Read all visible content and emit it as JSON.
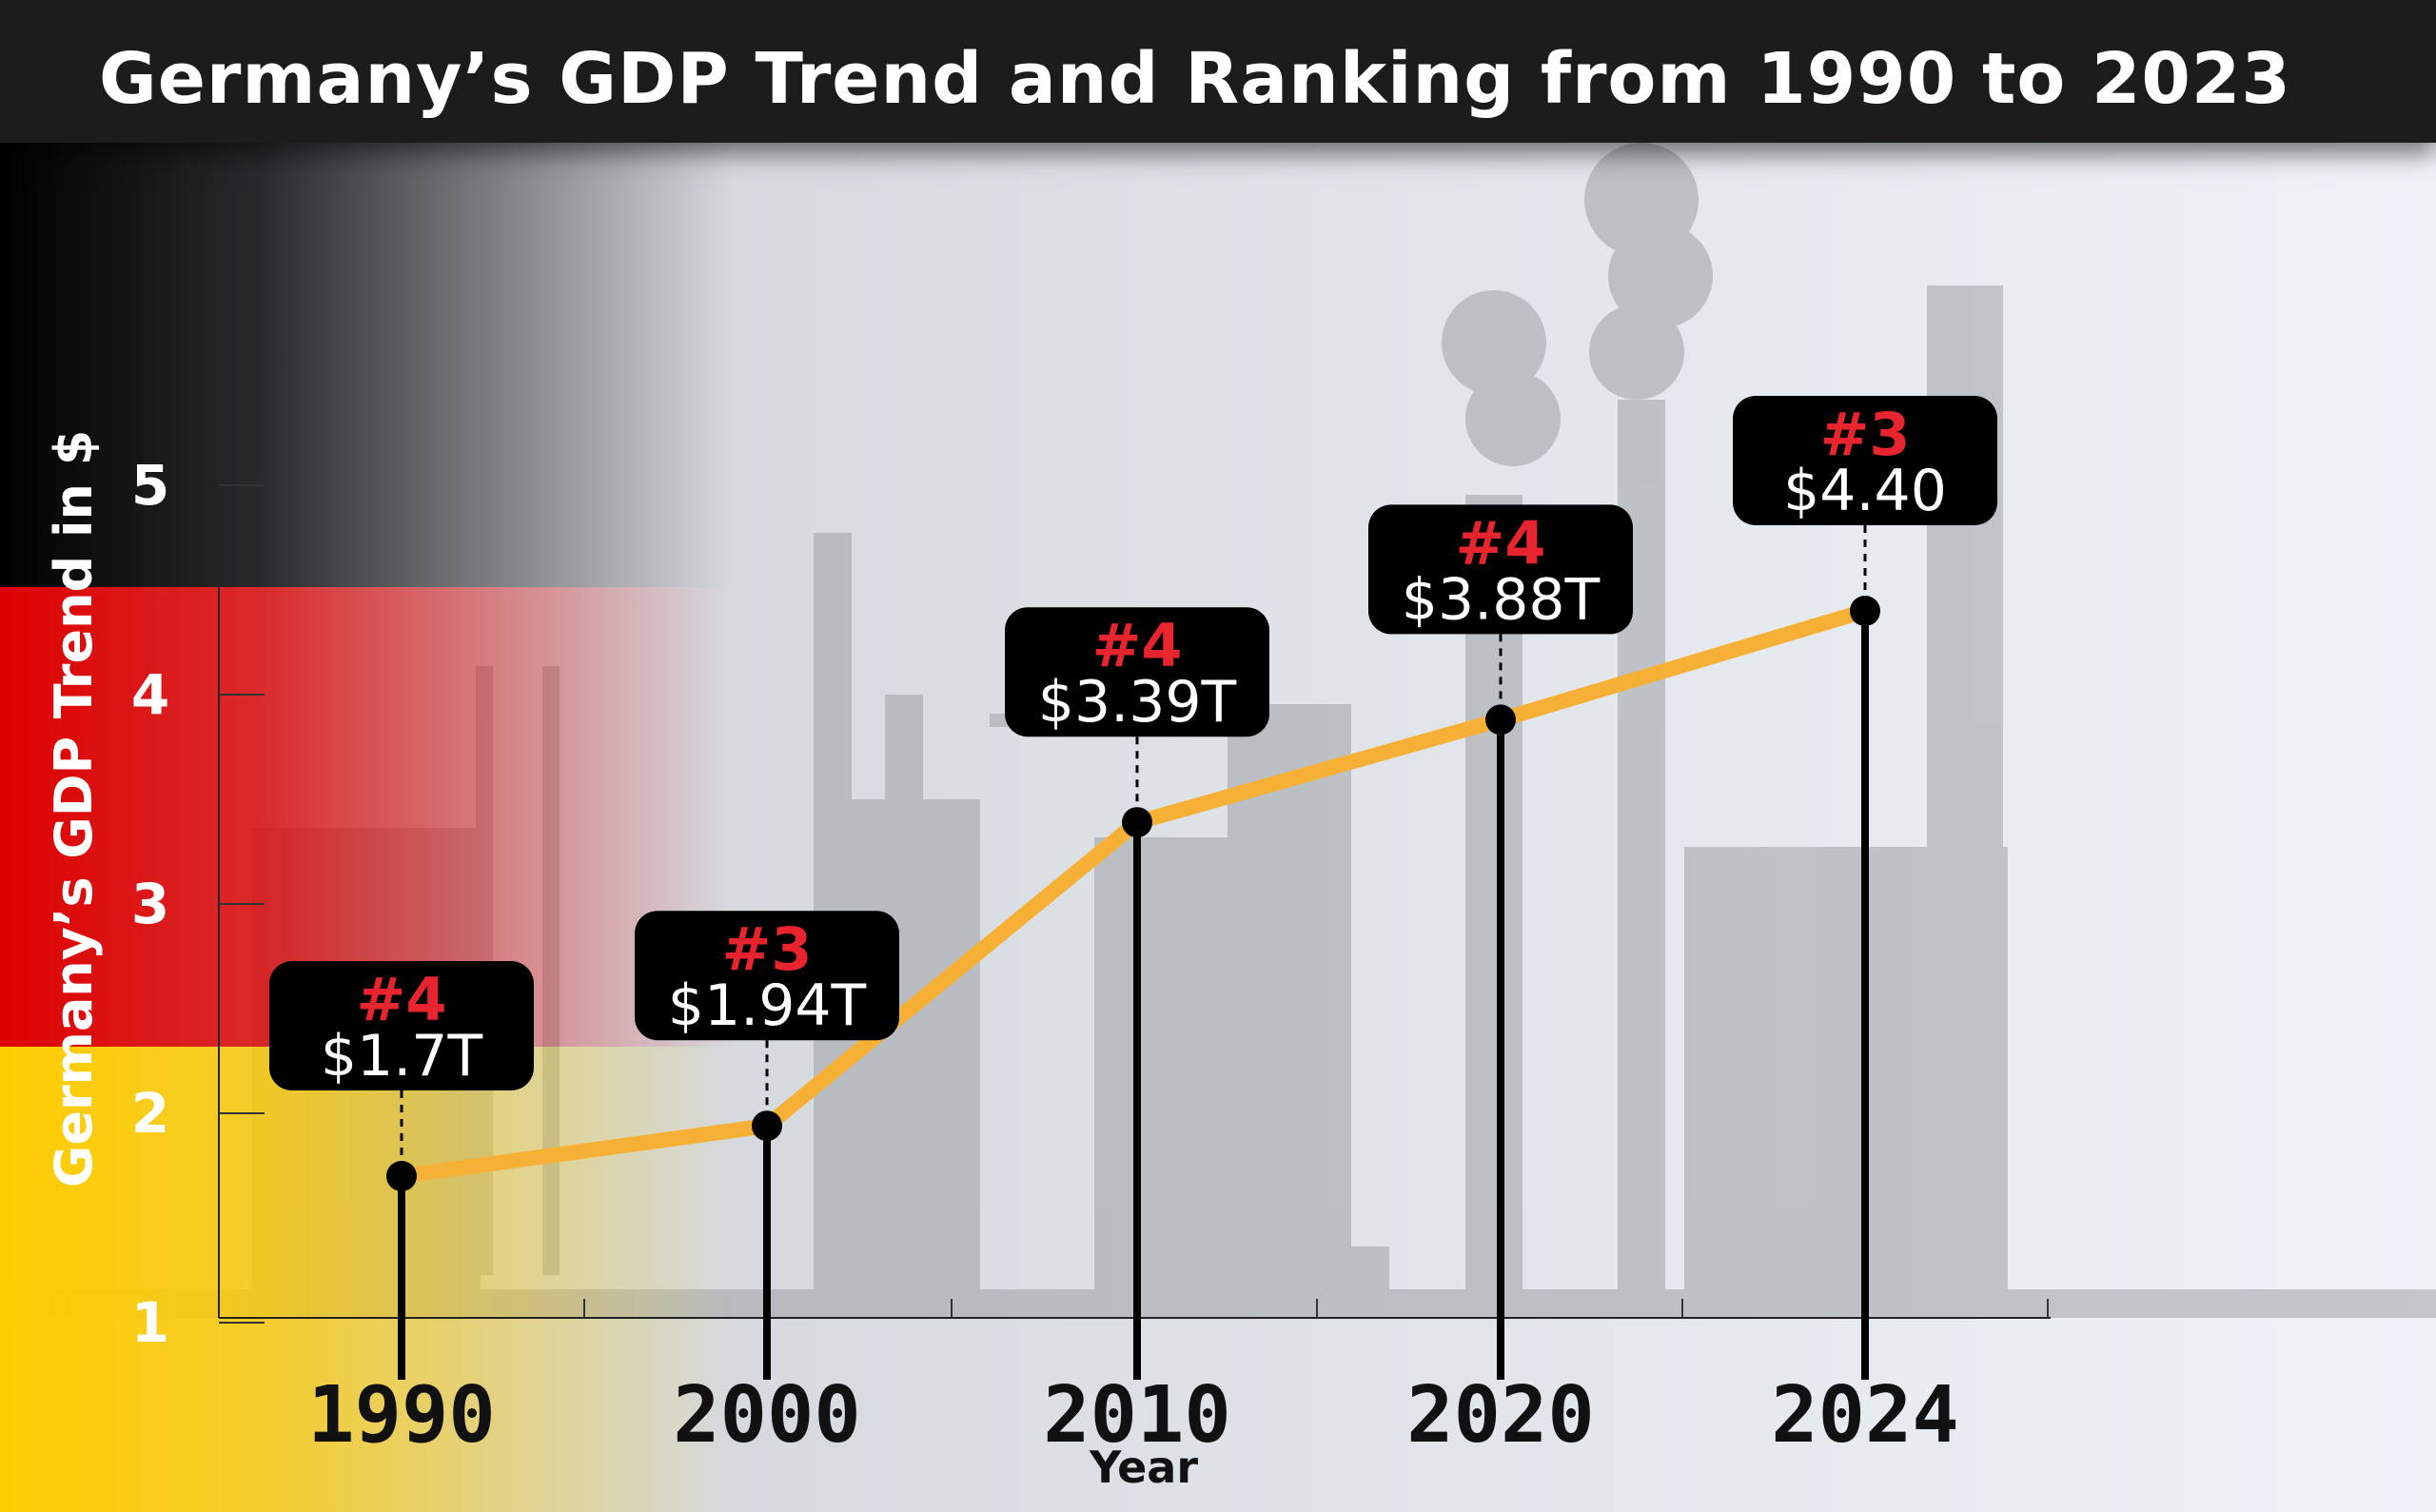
{
  "chart_data": {
    "type": "line",
    "title": "Germany’s GDP Trend and Ranking from 1990 to 2023",
    "xlabel": "Year",
    "ylabel": "Germany’s GDP Trend in $",
    "ylim": [
      1,
      5
    ],
    "yticks": [
      "1",
      "2",
      "3",
      "4",
      "5"
    ],
    "categories": [
      "1990",
      "2000",
      "2010",
      "2020",
      "2024"
    ],
    "series": [
      {
        "values": [
          1.7,
          1.94,
          3.39,
          3.88,
          4.4
        ]
      }
    ],
    "annotations": [
      {
        "rank": "#4",
        "value": "$1.7T"
      },
      {
        "rank": "#3",
        "value": "$1.94T"
      },
      {
        "rank": "#4",
        "value": "$3.39T"
      },
      {
        "rank": "#4",
        "value": "$3.88T"
      },
      {
        "rank": "#3",
        "value": "$4.40"
      }
    ],
    "grid": false,
    "colors": {
      "line": "#f7b036",
      "rank_text": "#e8242e",
      "label_box": "#000000",
      "flag_black": "#000000",
      "flag_red": "#dd0000",
      "flag_gold": "#ffcc00"
    }
  }
}
